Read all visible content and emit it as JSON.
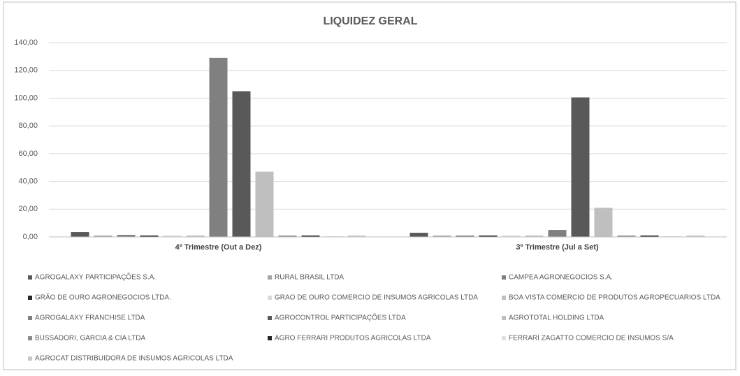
{
  "chart_data": {
    "type": "bar",
    "title": "LIQUIDEZ GERAL",
    "categories": [
      "4º Trimestre (Out a Dez)",
      "3º Trimestre (Jul a Set)"
    ],
    "series": [
      {
        "name": "AGROGALAXY PARTICIPAÇÕES S.A.",
        "color": "#595959",
        "values": [
          3.5,
          3.0
        ]
      },
      {
        "name": "RURAL BRASIL LTDA",
        "color": "#a6a6a6",
        "values": [
          1.0,
          1.0
        ]
      },
      {
        "name": "CAMPEA AGRONEGOCIOS S.A.",
        "color": "#7f7f7f",
        "values": [
          1.5,
          1.0
        ]
      },
      {
        "name": "GRÃO DE OURO AGRONEGOCIOS LTDA.",
        "color": "#262626",
        "values": [
          1.0,
          1.0
        ]
      },
      {
        "name": "GRAO DE OURO COMERCIO DE INSUMOS AGRICOLAS LTDA",
        "color": "#d9d9d9",
        "values": [
          1.0,
          1.0
        ]
      },
      {
        "name": "BOA VISTA COMERCIO DE PRODUTOS AGROPECUARIOS LTDA",
        "color": "#bfbfbf",
        "values": [
          1.0,
          1.0
        ]
      },
      {
        "name": "AGROGALAXY FRANCHISE LTDA",
        "color": "#808080",
        "values": [
          129,
          5
        ]
      },
      {
        "name": "AGROCONTROL PARTICIPAÇÕES LTDA",
        "color": "#595959",
        "values": [
          105,
          100.5
        ]
      },
      {
        "name": "AGROTOTAL HOLDING LTDA",
        "color": "#bfbfbf",
        "values": [
          47,
          21
        ]
      },
      {
        "name": "BUSSADORI, GARCIA & CIA LTDA",
        "color": "#8c8c8c",
        "values": [
          1.0,
          1.0
        ]
      },
      {
        "name": "AGRO FERRARI PRODUTOS AGRICOLAS LTDA",
        "color": "#262626",
        "values": [
          1.0,
          1.0
        ]
      },
      {
        "name": "FERRARI ZAGATTO COMERCIO DE INSUMOS S/A",
        "color": "#e0e0e0",
        "values": [
          0.5,
          0.5
        ]
      },
      {
        "name": "AGROCAT DISTRIBUIDORA DE INSUMOS AGRICOLAS LTDA",
        "color": "#c8c8c8",
        "values": [
          1.0,
          1.0
        ]
      }
    ],
    "ylim": [
      0,
      140
    ],
    "yticks": [
      {
        "value": 0,
        "label": "0,00"
      },
      {
        "value": 20,
        "label": "20,00"
      },
      {
        "value": 40,
        "label": "40,00"
      },
      {
        "value": 60,
        "label": "60,00"
      },
      {
        "value": 80,
        "label": "80,00"
      },
      {
        "value": 100,
        "label": "100,00"
      },
      {
        "value": 120,
        "label": "120,00"
      },
      {
        "value": 140,
        "label": "140,00"
      }
    ],
    "grid": true,
    "legend": "bottom"
  }
}
